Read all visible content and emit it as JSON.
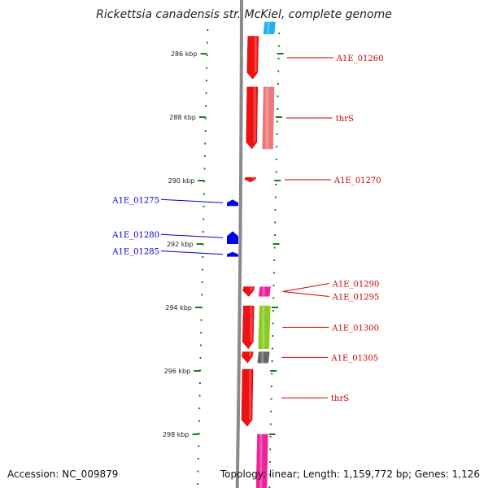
{
  "title": "Rickettsia canadensis str. McKiel, complete genome",
  "footer": {
    "accession": "Accession: NC_009879",
    "summary": "Topology: linear; Length: 1,159,772 bp; Genes: 1,126"
  },
  "colors": {
    "backbone": "#8a8a8a",
    "tick": "#1a7a1a",
    "forward_label": "#cc0000",
    "reverse_label": "#0000cc"
  },
  "ticks": [
    {
      "label": "286 kbp",
      "kbp": 286
    },
    {
      "label": "288 kbp",
      "kbp": 288
    },
    {
      "label": "290 kbp",
      "kbp": 290
    },
    {
      "label": "292 kbp",
      "kbp": 292
    },
    {
      "label": "294 kbp",
      "kbp": 294
    },
    {
      "label": "296 kbp",
      "kbp": 296
    },
    {
      "label": "298 kbp",
      "kbp": 298
    }
  ],
  "genes": [
    {
      "name": "A1E_01260",
      "strand": "+",
      "start_kbp": 285.45,
      "end_kbp": 286.8,
      "color": "#ee1111"
    },
    {
      "name": "thrS",
      "strand": "+",
      "start_kbp": 287.05,
      "end_kbp": 289.0,
      "color": "#ee1111"
    },
    {
      "name": "A1E_01270",
      "strand": "+",
      "start_kbp": 289.9,
      "end_kbp": 290.05,
      "color": "#ee1111"
    },
    {
      "name": "A1E_01275",
      "strand": "-",
      "start_kbp": 290.6,
      "end_kbp": 290.8,
      "color": "#0000ee"
    },
    {
      "name": "A1E_01280",
      "strand": "-",
      "start_kbp": 291.6,
      "end_kbp": 292.0,
      "color": "#0000ee"
    },
    {
      "name": "A1E_01285",
      "strand": "-",
      "start_kbp": 292.25,
      "end_kbp": 292.4,
      "color": "#0000ee"
    },
    {
      "name": "A1E_01290",
      "strand": "+",
      "start_kbp": 293.35,
      "end_kbp": 293.65,
      "color": "#ee1111"
    },
    {
      "name": "A1E_01295",
      "strand": "+",
      "start_kbp": 293.35,
      "end_kbp": 293.65,
      "color": "#ee1111"
    },
    {
      "name": "A1E_01300",
      "strand": "+",
      "start_kbp": 293.95,
      "end_kbp": 295.3,
      "color": "#ee1111"
    },
    {
      "name": "A1E_01305",
      "strand": "+",
      "start_kbp": 295.4,
      "end_kbp": 295.75,
      "color": "#ee1111"
    },
    {
      "name": "thrS",
      "strand": "+",
      "start_kbp": 295.95,
      "end_kbp": 297.75,
      "color": "#ee1111"
    }
  ],
  "feature_blocks": [
    {
      "type": "cds",
      "start_kbp": 285.0,
      "end_kbp": 285.38,
      "color": "#22b0ee"
    },
    {
      "type": "cds",
      "start_kbp": 287.05,
      "end_kbp": 289.0,
      "color": "#ee7777"
    },
    {
      "type": "cds",
      "start_kbp": 293.35,
      "end_kbp": 293.65,
      "color": "#ee2299"
    },
    {
      "type": "cds",
      "start_kbp": 293.95,
      "end_kbp": 295.3,
      "color": "#88cc22"
    },
    {
      "type": "cds",
      "start_kbp": 295.4,
      "end_kbp": 295.75,
      "color": "#666666"
    },
    {
      "type": "cds",
      "start_kbp": 298.0,
      "end_kbp": 299.9,
      "color": "#ee2299"
    }
  ]
}
